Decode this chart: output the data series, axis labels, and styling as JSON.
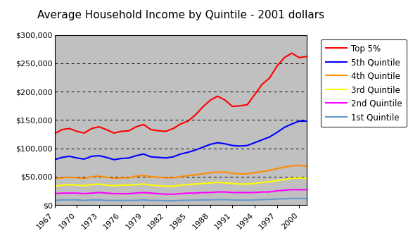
{
  "title": "Average Household Income by Quintile - 2001 dollars",
  "years": [
    1967,
    1968,
    1969,
    1970,
    1971,
    1972,
    1973,
    1974,
    1975,
    1976,
    1977,
    1978,
    1979,
    1980,
    1981,
    1982,
    1983,
    1984,
    1985,
    1986,
    1987,
    1988,
    1989,
    1990,
    1991,
    1992,
    1993,
    1994,
    1995,
    1996,
    1997,
    1998,
    1999,
    2000,
    2001
  ],
  "top5": [
    126000,
    133000,
    135000,
    130000,
    127000,
    135000,
    138000,
    133000,
    127000,
    130000,
    131000,
    138000,
    142000,
    133000,
    131000,
    130000,
    135000,
    143000,
    148000,
    159000,
    173000,
    185000,
    192000,
    185000,
    174000,
    175000,
    177000,
    195000,
    213000,
    224000,
    245000,
    260000,
    268000,
    260000,
    262000
  ],
  "quintile5": [
    80000,
    84000,
    86000,
    83000,
    81000,
    86000,
    87000,
    84000,
    80000,
    82000,
    83000,
    87000,
    90000,
    85000,
    84000,
    83000,
    85000,
    90000,
    93000,
    97000,
    102000,
    107000,
    110000,
    108000,
    105000,
    104000,
    105000,
    110000,
    115000,
    120000,
    128000,
    137000,
    143000,
    148000,
    148000
  ],
  "quintile4": [
    46000,
    48000,
    49000,
    48000,
    47000,
    50000,
    51000,
    49000,
    47000,
    48000,
    48000,
    51000,
    52000,
    50000,
    49000,
    48000,
    48000,
    50000,
    52000,
    53000,
    55000,
    57000,
    58000,
    58000,
    56000,
    55000,
    55000,
    57000,
    59000,
    61000,
    64000,
    67000,
    69000,
    70000,
    68000
  ],
  "quintile3": [
    33000,
    35000,
    36000,
    35000,
    34000,
    36000,
    37000,
    35000,
    34000,
    35000,
    35000,
    36000,
    37000,
    35000,
    34000,
    33000,
    33000,
    35000,
    36000,
    37000,
    38000,
    39000,
    40000,
    39000,
    38000,
    37000,
    37000,
    38000,
    40000,
    41000,
    43000,
    45000,
    47000,
    48000,
    47000
  ],
  "quintile2": [
    20000,
    21000,
    21000,
    21000,
    20000,
    21000,
    22000,
    21000,
    20000,
    20000,
    20000,
    21000,
    22000,
    21000,
    20000,
    19000,
    19000,
    20000,
    21000,
    21000,
    22000,
    22000,
    23000,
    23000,
    22000,
    22000,
    22000,
    22000,
    23000,
    23000,
    25000,
    26000,
    27000,
    27000,
    27000
  ],
  "quintile1": [
    8000,
    9000,
    9000,
    9000,
    8000,
    9000,
    9000,
    8000,
    8000,
    8000,
    8000,
    8000,
    9000,
    8000,
    8000,
    7500,
    7500,
    8000,
    8500,
    8500,
    9000,
    9000,
    9500,
    9500,
    9000,
    8500,
    8500,
    9000,
    9500,
    10000,
    10500,
    11000,
    11500,
    11500,
    11500
  ],
  "series_labels": [
    "Top 5%",
    "5th Quintile",
    "4th Quintile",
    "3rd Quintile",
    "2nd Quintile",
    "1st Quintile"
  ],
  "series_colors": [
    "#ff0000",
    "#0000ff",
    "#ff8c00",
    "#ffff00",
    "#ff00ff",
    "#6699cc"
  ],
  "ylim": [
    0,
    300000
  ],
  "yticks": [
    0,
    50000,
    100000,
    150000,
    200000,
    250000,
    300000
  ],
  "xlim": [
    1967,
    2001
  ],
  "xticks": [
    1967,
    1970,
    1973,
    1976,
    1979,
    1982,
    1985,
    1988,
    1991,
    1994,
    1997,
    2000
  ],
  "plot_bg": "#c0c0c0",
  "outer_bg": "#ffffff",
  "title_fontsize": 11,
  "tick_fontsize": 8,
  "legend_fontsize": 8.5
}
